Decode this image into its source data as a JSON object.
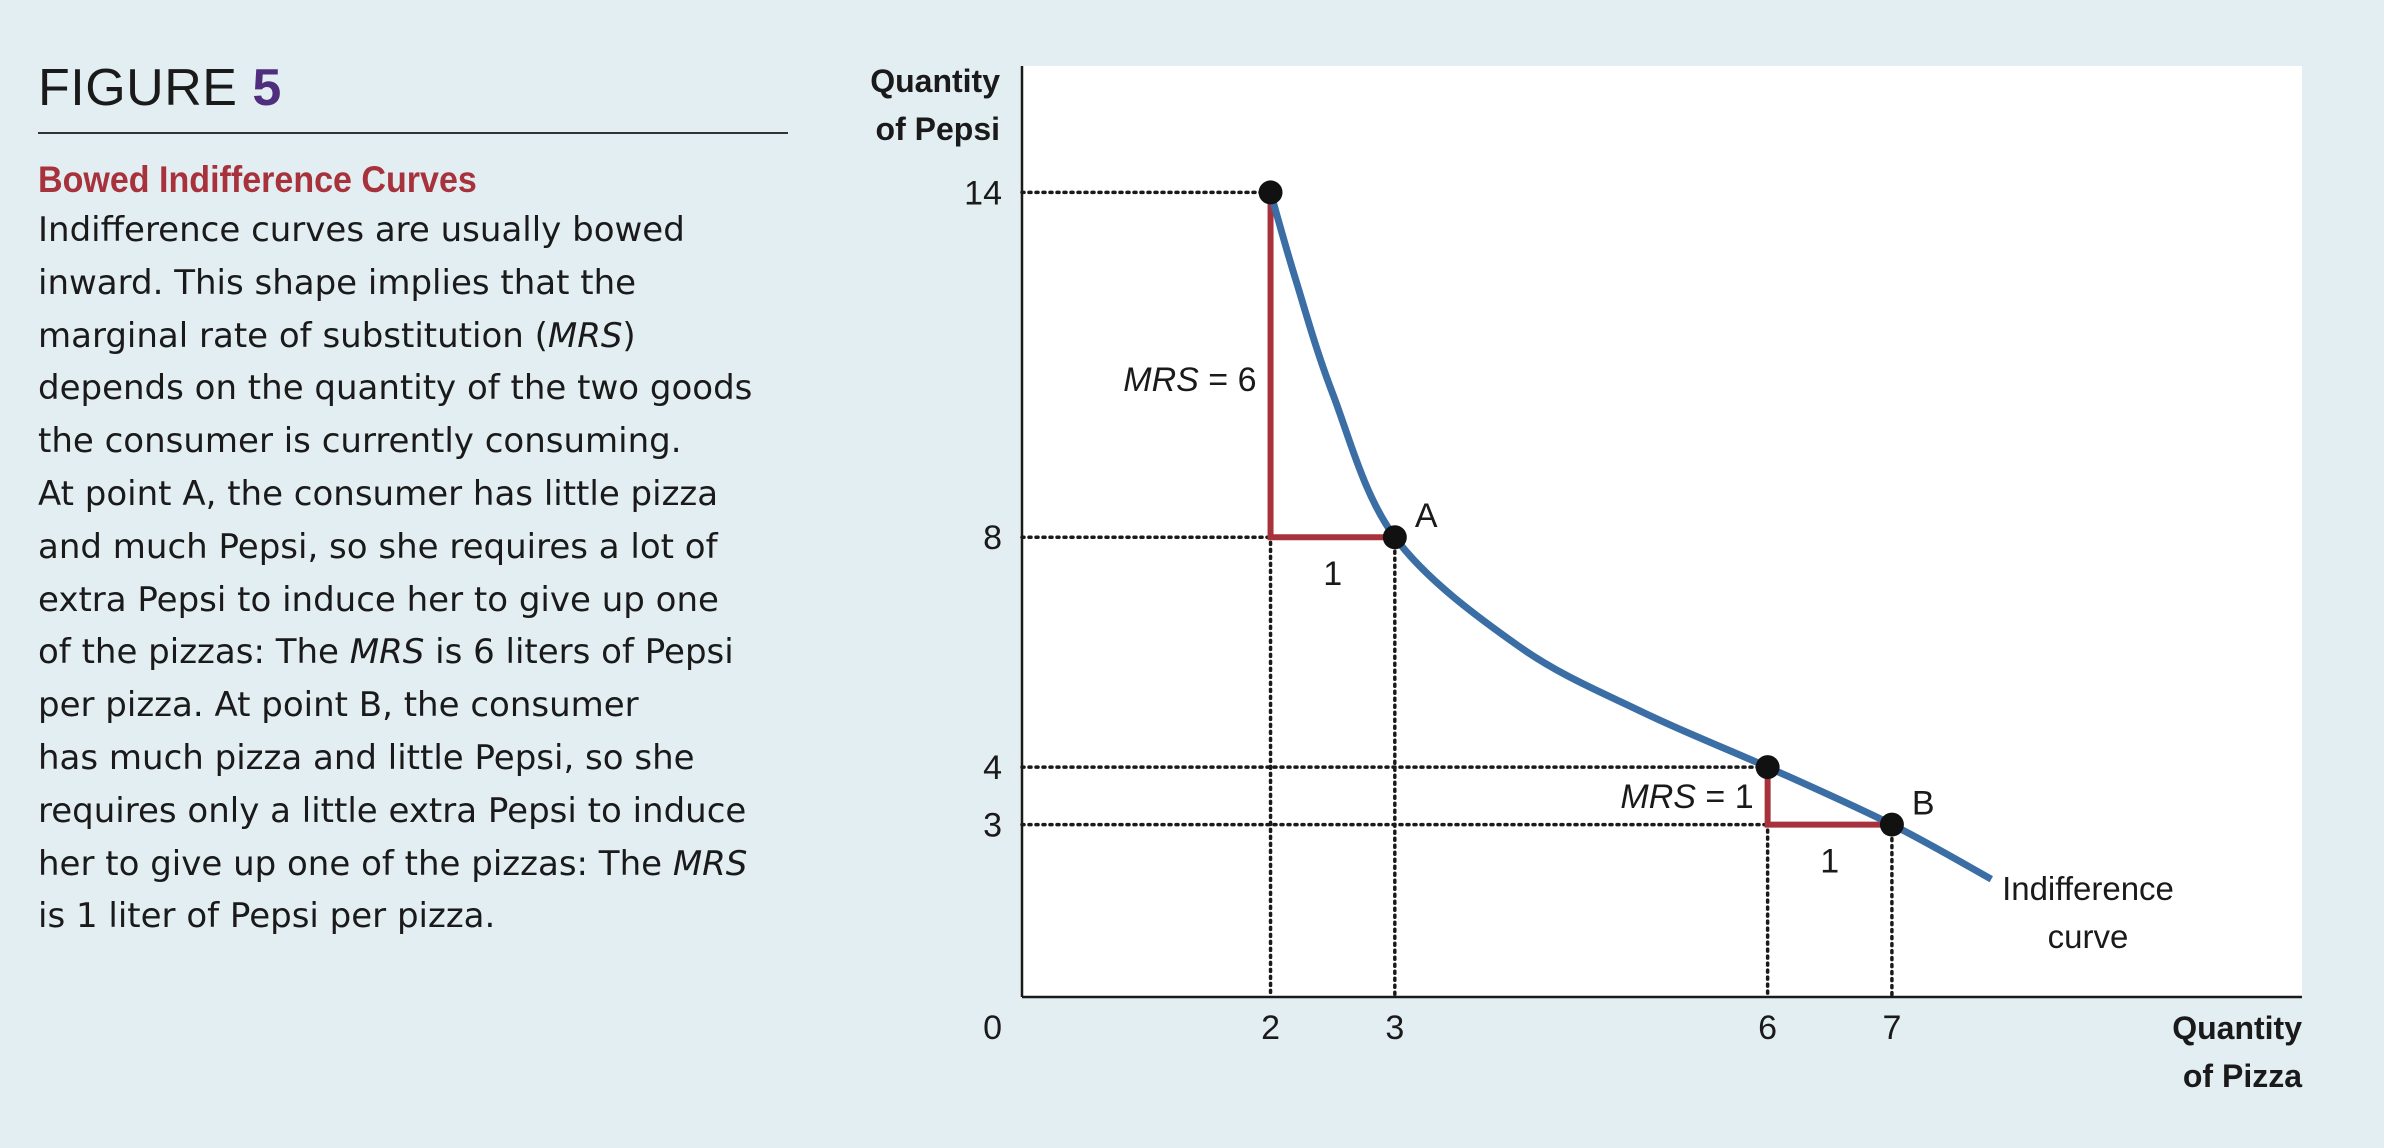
{
  "figure": {
    "label": "FIGURE",
    "number": "5",
    "title": "Bowed Indifference Curves",
    "body_lines": [
      [
        {
          "t": "Indifference curves are usually bowed"
        }
      ],
      [
        {
          "t": "inward. This shape implies that the"
        }
      ],
      [
        {
          "t": "marginal rate of substitution ("
        },
        {
          "t": "MRS",
          "i": true
        },
        {
          "t": ")"
        }
      ],
      [
        {
          "t": "depends on the quantity of the two goods"
        }
      ],
      [
        {
          "t": "the consumer is currently consuming."
        }
      ],
      [
        {
          "t": "At point A, the consumer has little pizza"
        }
      ],
      [
        {
          "t": "and much Pepsi, so she requires a lot of"
        }
      ],
      [
        {
          "t": "extra Pepsi to induce her to give up one"
        }
      ],
      [
        {
          "t": "of the pizzas: The "
        },
        {
          "t": "MRS",
          "i": true
        },
        {
          "t": " is 6 liters of Pepsi"
        }
      ],
      [
        {
          "t": "per pizza. At point B, the consumer"
        }
      ],
      [
        {
          "t": "has much pizza and little Pepsi, so she"
        }
      ],
      [
        {
          "t": "requires only a little extra Pepsi to induce"
        }
      ],
      [
        {
          "t": "her to give up one of the pizzas: The "
        },
        {
          "t": "MRS",
          "i": true
        }
      ],
      [
        {
          "t": "is 1 liter of Pepsi per pizza."
        }
      ]
    ]
  },
  "chart_data": {
    "type": "line",
    "ylabel": [
      "Quantity",
      "of Pepsi"
    ],
    "xlabel": [
      "Quantity",
      "of Pizza"
    ],
    "origin_label": "0",
    "x_ticks": [
      2,
      3,
      6,
      7
    ],
    "y_ticks": [
      14,
      8,
      4,
      3
    ],
    "xlim": [
      0,
      10.3
    ],
    "ylim": [
      0,
      16.2
    ],
    "grid": false,
    "legend": "none",
    "curve": {
      "label": [
        "Indifference",
        "curve"
      ],
      "color": "#3a6ea5",
      "points": [
        [
          2,
          14
        ],
        [
          2.2,
          12.5
        ],
        [
          2.5,
          10.5
        ],
        [
          3,
          8
        ],
        [
          4,
          6.1
        ],
        [
          5,
          4.95
        ],
        [
          6,
          4
        ],
        [
          7,
          3
        ],
        [
          7.8,
          2.05
        ]
      ]
    },
    "points": [
      {
        "x": 2,
        "y": 14,
        "label": ""
      },
      {
        "x": 3,
        "y": 8,
        "label": "A"
      },
      {
        "x": 6,
        "y": 4,
        "label": ""
      },
      {
        "x": 7,
        "y": 3,
        "label": "B"
      }
    ],
    "mrs_triangles": [
      {
        "from": [
          2,
          14
        ],
        "corner": [
          2,
          8
        ],
        "to": [
          3,
          8
        ],
        "rise_label_italic": "MRS",
        "rise_label_rest": " = 6",
        "run_label": "1"
      },
      {
        "from": [
          6,
          4
        ],
        "corner": [
          6,
          3
        ],
        "to": [
          7,
          3
        ],
        "rise_label_italic": "MRS",
        "rise_label_rest": " = 1",
        "run_label": "1"
      }
    ],
    "triangle_color": "#a8323c"
  }
}
